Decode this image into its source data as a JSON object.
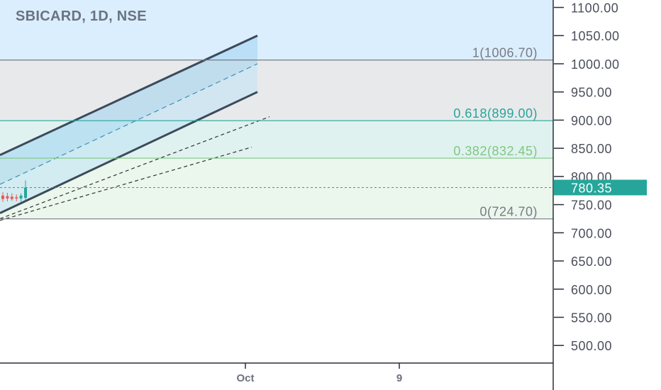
{
  "header": {
    "title": "SBICARD, 1D, NSE"
  },
  "chart_data": {
    "type": "candlestick",
    "symbol": "SBICARD",
    "interval": "1D",
    "exchange": "NSE",
    "y_axis": {
      "ylim": [
        460,
        1135
      ],
      "ticks": [
        "1100.00",
        "1050.00",
        "1000.00",
        "950.00",
        "900.00",
        "850.00",
        "800.00",
        "750.00",
        "700.00",
        "650.00",
        "600.00",
        "550.00",
        "500.00"
      ]
    },
    "x_axis": {
      "ticks": [
        "Oct",
        "9"
      ]
    },
    "last_price": {
      "label": "780.35",
      "value": 780.35,
      "color": "#26a69a"
    },
    "fib_levels": [
      {
        "ratio": 1,
        "price": 1006.7,
        "label": "1(1006.70)",
        "color": "#787b86",
        "fill": "#e8e9eb"
      },
      {
        "ratio": 0.618,
        "price": 899.0,
        "label": "0.618(899.00)",
        "color": "#26a69a",
        "fill": "#dff2ef"
      },
      {
        "ratio": 0.382,
        "price": 832.45,
        "label": "0.382(832.45)",
        "color": "#81c784",
        "fill": "#ebf6ec"
      },
      {
        "ratio": 0,
        "price": 724.7,
        "label": "0(724.70)",
        "color": "#787b86",
        "fill": null
      }
    ],
    "above_fill_color": "#dbeefd",
    "candles": [
      {
        "o": 766,
        "h": 772,
        "l": 755,
        "c": 760,
        "up": false
      },
      {
        "o": 765,
        "h": 771,
        "l": 756,
        "c": 761,
        "up": false
      },
      {
        "o": 764,
        "h": 770,
        "l": 757,
        "c": 760,
        "up": false
      },
      {
        "o": 763,
        "h": 768,
        "l": 756,
        "c": 762,
        "up": false
      },
      {
        "o": 761,
        "h": 770,
        "l": 755,
        "c": 766,
        "up": true
      },
      {
        "o": 762,
        "h": 793,
        "l": 758,
        "c": 780.35,
        "up": true
      }
    ],
    "colors": {
      "up": "#26a69a",
      "down": "#ef5350"
    }
  }
}
